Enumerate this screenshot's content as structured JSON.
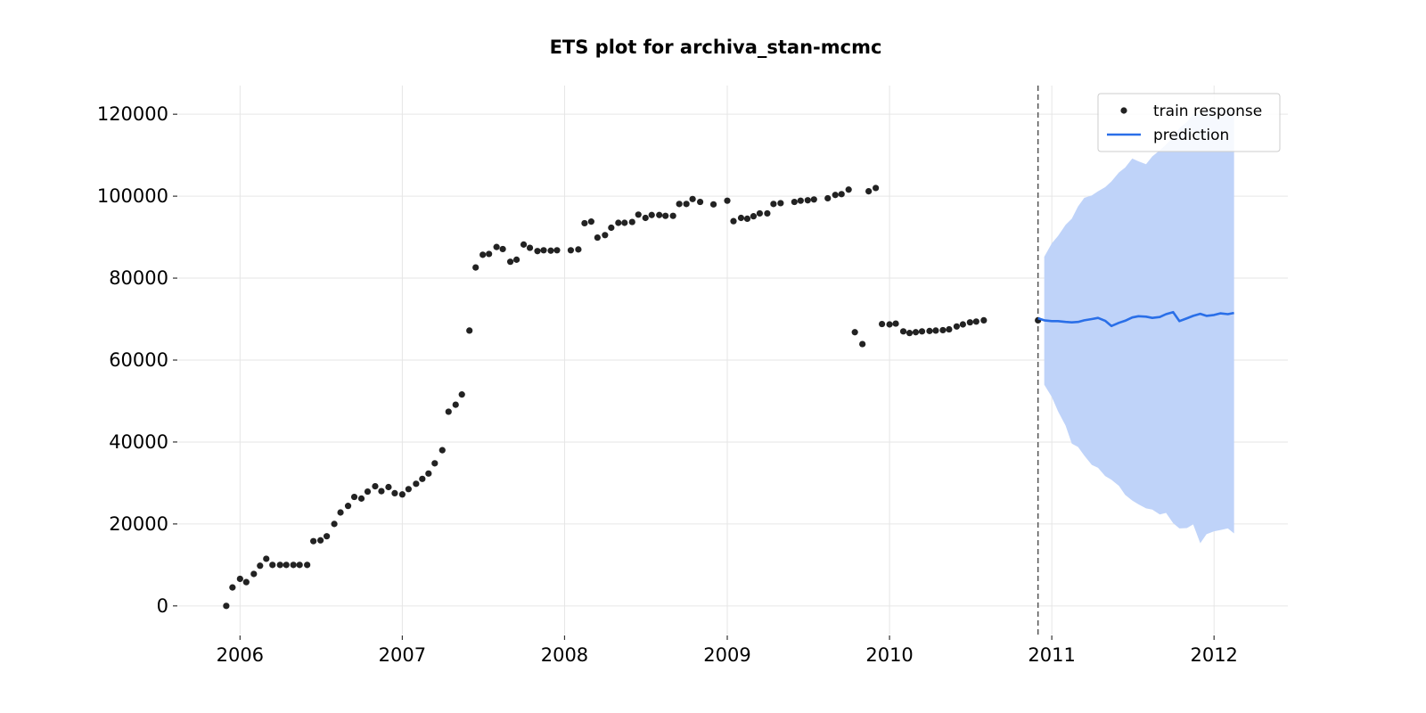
{
  "chart_data": {
    "type": "line",
    "title": "ETS plot for archiva_stan-mcmc",
    "xlabel": "",
    "ylabel": "",
    "x_ticks": [
      "2006",
      "2007",
      "2008",
      "2009",
      "2010",
      "2011",
      "2012"
    ],
    "y_ticks": [
      "0",
      "20000",
      "40000",
      "60000",
      "80000",
      "100000",
      "120000"
    ],
    "xlim": [
      "2005-08-15",
      "2012-06-15"
    ],
    "ylim": [
      -7000,
      127000
    ],
    "grid": true,
    "legend_position": "top-right",
    "cutoff_date": "2010-12-01",
    "colors": {
      "train": "#222222",
      "prediction": "#2a6fe8",
      "interval": "#bfd3f9",
      "cutoff": "#555555"
    },
    "series": [
      {
        "name": "train response",
        "kind": "scatter",
        "points": [
          [
            "2005-12-01",
            0
          ],
          [
            "2005-12-15",
            4500
          ],
          [
            "2006-01-01",
            6600
          ],
          [
            "2006-01-15",
            5800
          ],
          [
            "2006-02-01",
            7800
          ],
          [
            "2006-02-15",
            9800
          ],
          [
            "2006-03-01",
            11500
          ],
          [
            "2006-03-15",
            10000
          ],
          [
            "2006-04-01",
            10000
          ],
          [
            "2006-04-15",
            10000
          ],
          [
            "2006-05-01",
            10000
          ],
          [
            "2006-05-15",
            10000
          ],
          [
            "2006-06-01",
            10000
          ],
          [
            "2006-06-15",
            15800
          ],
          [
            "2006-07-01",
            16000
          ],
          [
            "2006-07-15",
            17000
          ],
          [
            "2006-08-01",
            20000
          ],
          [
            "2006-08-15",
            22800
          ],
          [
            "2006-09-01",
            24400
          ],
          [
            "2006-09-15",
            26600
          ],
          [
            "2006-10-01",
            26200
          ],
          [
            "2006-10-15",
            27900
          ],
          [
            "2006-11-01",
            29200
          ],
          [
            "2006-11-15",
            28000
          ],
          [
            "2006-12-01",
            29000
          ],
          [
            "2006-12-15",
            27500
          ],
          [
            "2007-01-01",
            27200
          ],
          [
            "2007-01-15",
            28500
          ],
          [
            "2007-02-01",
            29800
          ],
          [
            "2007-02-15",
            31000
          ],
          [
            "2007-03-01",
            32300
          ],
          [
            "2007-03-15",
            34800
          ],
          [
            "2007-04-01",
            38000
          ],
          [
            "2007-04-15",
            47400
          ],
          [
            "2007-05-01",
            49100
          ],
          [
            "2007-05-15",
            51600
          ],
          [
            "2007-06-01",
            67200
          ],
          [
            "2007-06-15",
            82600
          ],
          [
            "2007-07-01",
            85700
          ],
          [
            "2007-07-15",
            85900
          ],
          [
            "2007-08-01",
            87600
          ],
          [
            "2007-08-15",
            87100
          ],
          [
            "2007-09-01",
            84000
          ],
          [
            "2007-09-15",
            84500
          ],
          [
            "2007-10-01",
            88200
          ],
          [
            "2007-10-15",
            87400
          ],
          [
            "2007-11-01",
            86600
          ],
          [
            "2007-11-15",
            86800
          ],
          [
            "2007-12-01",
            86700
          ],
          [
            "2007-12-15",
            86800
          ],
          [
            "2008-01-15",
            86800
          ],
          [
            "2008-02-01",
            87000
          ],
          [
            "2008-02-15",
            93400
          ],
          [
            "2008-03-01",
            93800
          ],
          [
            "2008-03-15",
            89900
          ],
          [
            "2008-04-01",
            90500
          ],
          [
            "2008-04-15",
            92300
          ],
          [
            "2008-05-01",
            93500
          ],
          [
            "2008-05-15",
            93500
          ],
          [
            "2008-06-01",
            93700
          ],
          [
            "2008-06-15",
            95500
          ],
          [
            "2008-07-01",
            94700
          ],
          [
            "2008-07-15",
            95400
          ],
          [
            "2008-08-01",
            95400
          ],
          [
            "2008-08-15",
            95200
          ],
          [
            "2008-09-01",
            95200
          ],
          [
            "2008-09-15",
            98100
          ],
          [
            "2008-10-01",
            98100
          ],
          [
            "2008-10-15",
            99300
          ],
          [
            "2008-11-01",
            98600
          ],
          [
            "2008-12-01",
            98000
          ],
          [
            "2009-01-01",
            98900
          ],
          [
            "2009-01-15",
            93900
          ],
          [
            "2009-02-01",
            94700
          ],
          [
            "2009-02-15",
            94500
          ],
          [
            "2009-03-01",
            95100
          ],
          [
            "2009-03-15",
            95800
          ],
          [
            "2009-04-01",
            95800
          ],
          [
            "2009-04-15",
            98100
          ],
          [
            "2009-05-01",
            98300
          ],
          [
            "2009-06-01",
            98600
          ],
          [
            "2009-06-15",
            98900
          ],
          [
            "2009-07-01",
            99000
          ],
          [
            "2009-07-15",
            99200
          ],
          [
            "2009-08-15",
            99500
          ],
          [
            "2009-09-01",
            100300
          ],
          [
            "2009-09-15",
            100500
          ],
          [
            "2009-10-01",
            101600
          ],
          [
            "2009-10-15",
            66800
          ],
          [
            "2009-11-01",
            63900
          ],
          [
            "2009-11-15",
            101200
          ],
          [
            "2009-12-01",
            102000
          ],
          [
            "2009-12-15",
            68800
          ],
          [
            "2010-01-01",
            68700
          ],
          [
            "2010-01-15",
            68900
          ],
          [
            "2010-02-01",
            67000
          ],
          [
            "2010-02-15",
            66600
          ],
          [
            "2010-03-01",
            66800
          ],
          [
            "2010-03-15",
            67000
          ],
          [
            "2010-04-01",
            67100
          ],
          [
            "2010-04-15",
            67200
          ],
          [
            "2010-05-01",
            67300
          ],
          [
            "2010-05-15",
            67500
          ],
          [
            "2010-06-01",
            68200
          ],
          [
            "2010-06-15",
            68700
          ],
          [
            "2010-07-01",
            69200
          ],
          [
            "2010-07-15",
            69400
          ],
          [
            "2010-08-01",
            69700
          ],
          [
            "2010-12-01",
            69700
          ]
        ]
      },
      {
        "name": "prediction",
        "kind": "line",
        "points": [
          [
            "2010-12-01",
            70200
          ],
          [
            "2010-12-15",
            69700
          ],
          [
            "2011-01-01",
            69500
          ],
          [
            "2011-01-15",
            69500
          ],
          [
            "2011-02-01",
            69300
          ],
          [
            "2011-02-15",
            69200
          ],
          [
            "2011-03-01",
            69300
          ],
          [
            "2011-03-15",
            69700
          ],
          [
            "2011-04-01",
            70000
          ],
          [
            "2011-04-15",
            70300
          ],
          [
            "2011-05-01",
            69600
          ],
          [
            "2011-05-15",
            68300
          ],
          [
            "2011-06-01",
            69100
          ],
          [
            "2011-06-15",
            69600
          ],
          [
            "2011-07-01",
            70400
          ],
          [
            "2011-07-15",
            70700
          ],
          [
            "2011-08-01",
            70600
          ],
          [
            "2011-08-15",
            70300
          ],
          [
            "2011-09-01",
            70500
          ],
          [
            "2011-09-15",
            71200
          ],
          [
            "2011-10-01",
            71700
          ],
          [
            "2011-10-15",
            69500
          ],
          [
            "2011-11-01",
            70200
          ],
          [
            "2011-11-15",
            70800
          ],
          [
            "2011-12-01",
            71300
          ],
          [
            "2011-12-15",
            70800
          ],
          [
            "2012-01-01",
            71000
          ],
          [
            "2012-01-15",
            71400
          ],
          [
            "2012-02-01",
            71200
          ],
          [
            "2012-02-15",
            71500
          ]
        ]
      },
      {
        "kind": "interval",
        "points": [
          [
            "2010-12-15",
            54000,
            85200
          ],
          [
            "2011-01-01",
            51000,
            88500
          ],
          [
            "2011-01-15",
            47500,
            90300
          ],
          [
            "2011-02-01",
            44000,
            93000
          ],
          [
            "2011-02-15",
            39600,
            94500
          ],
          [
            "2011-03-01",
            38800,
            97500
          ],
          [
            "2011-03-15",
            36700,
            99600
          ],
          [
            "2011-04-01",
            34400,
            100200
          ],
          [
            "2011-04-15",
            33700,
            101200
          ],
          [
            "2011-05-01",
            31700,
            102200
          ],
          [
            "2011-05-15",
            30800,
            103600
          ],
          [
            "2011-06-01",
            29300,
            105800
          ],
          [
            "2011-06-15",
            27100,
            107000
          ],
          [
            "2011-07-01",
            25700,
            109200
          ],
          [
            "2011-07-15",
            24800,
            108500
          ],
          [
            "2011-08-01",
            23800,
            107800
          ],
          [
            "2011-08-15",
            23500,
            109700
          ],
          [
            "2011-09-01",
            22300,
            111200
          ],
          [
            "2011-09-15",
            22700,
            112600
          ],
          [
            "2011-10-01",
            20200,
            114400
          ],
          [
            "2011-10-15",
            18900,
            116600
          ],
          [
            "2011-11-01",
            19000,
            118100
          ],
          [
            "2011-11-15",
            19900,
            120000
          ],
          [
            "2011-12-01",
            15300,
            120200
          ],
          [
            "2011-12-15",
            17500,
            120800
          ],
          [
            "2012-01-01",
            18200,
            121200
          ],
          [
            "2012-01-15",
            18500,
            121300
          ],
          [
            "2012-02-01",
            18900,
            121300
          ],
          [
            "2012-02-15",
            17700,
            121400
          ]
        ]
      }
    ]
  }
}
